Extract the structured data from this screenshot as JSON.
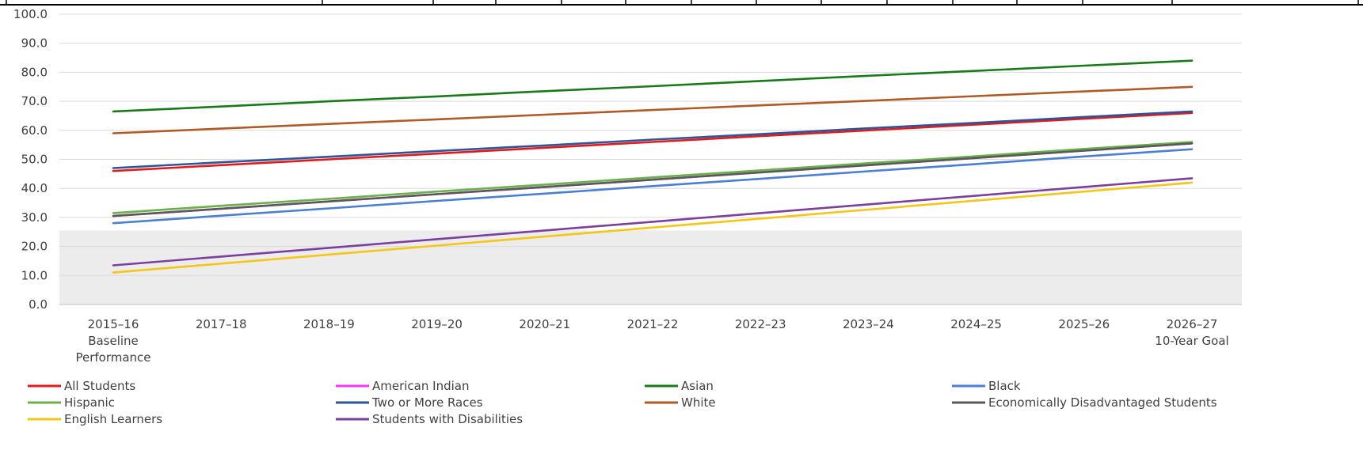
{
  "chart_data": {
    "type": "line",
    "categories": [
      [
        "2015–16",
        "Baseline",
        "Performance"
      ],
      [
        "2017–18"
      ],
      [
        "2018–19"
      ],
      [
        "2019–20"
      ],
      [
        "2020–21"
      ],
      [
        "2021–22"
      ],
      [
        "2022–23"
      ],
      [
        "2023–24"
      ],
      [
        "2024–25"
      ],
      [
        "2025–26"
      ],
      [
        "2026–27",
        "10-Year Goal"
      ]
    ],
    "ylim": [
      0,
      100
    ],
    "y_ticks": [
      "0.0",
      "10.0",
      "20.0",
      "30.0",
      "40.0",
      "50.0",
      "60.0",
      "70.0",
      "80.0",
      "90.0",
      "100.0"
    ],
    "shaded_band": [
      0,
      25.5
    ],
    "grid": true,
    "legend_position": "bottom",
    "series": [
      {
        "name": "All Students",
        "color": "#e31a1c",
        "values": [
          46.0,
          48.0,
          50.0,
          52.0,
          54.0,
          56.0,
          58.0,
          60.0,
          62.0,
          64.0,
          66.0
        ]
      },
      {
        "name": "American Indian",
        "color": "#ff33ff",
        "values": [
          30.5,
          33.0,
          35.5,
          38.0,
          40.5,
          43.0,
          45.5,
          48.0,
          50.5,
          53.0,
          55.5
        ]
      },
      {
        "name": "Asian",
        "color": "#1a7a1a",
        "values": [
          66.5,
          68.2,
          70.0,
          71.7,
          73.5,
          75.2,
          77.0,
          78.8,
          80.5,
          82.3,
          84.0
        ]
      },
      {
        "name": "Black",
        "color": "#4a7fd4",
        "values": [
          28.0,
          30.6,
          33.1,
          35.7,
          38.2,
          40.8,
          43.3,
          45.9,
          48.4,
          51.0,
          53.5
        ]
      },
      {
        "name": "Hispanic",
        "color": "#6ab04c",
        "values": [
          31.5,
          34.0,
          36.4,
          38.9,
          41.3,
          43.8,
          46.2,
          48.7,
          51.1,
          53.6,
          56.0
        ]
      },
      {
        "name": "Two or More Races",
        "color": "#2e5597",
        "values": [
          47.0,
          49.0,
          50.9,
          52.9,
          54.8,
          56.8,
          58.7,
          60.7,
          62.6,
          64.6,
          66.5
        ]
      },
      {
        "name": "White",
        "color": "#b05a28",
        "values": [
          59.0,
          60.6,
          62.2,
          63.8,
          65.4,
          67.0,
          68.6,
          70.2,
          71.8,
          73.4,
          75.0
        ]
      },
      {
        "name": "Economically Disadvantaged Students",
        "color": "#595959",
        "values": [
          30.5,
          33.0,
          35.5,
          38.0,
          40.5,
          43.0,
          45.5,
          48.0,
          50.5,
          53.0,
          55.5
        ]
      },
      {
        "name": "English Learners",
        "color": "#f5c518",
        "values": [
          11.0,
          14.1,
          17.2,
          20.3,
          23.4,
          26.5,
          29.6,
          32.7,
          35.8,
          38.9,
          42.0
        ]
      },
      {
        "name": "Students with Disabilities",
        "color": "#7b3fa0",
        "values": [
          13.5,
          16.5,
          19.5,
          22.5,
          25.5,
          28.5,
          31.5,
          34.5,
          37.5,
          40.5,
          43.5
        ]
      }
    ]
  }
}
